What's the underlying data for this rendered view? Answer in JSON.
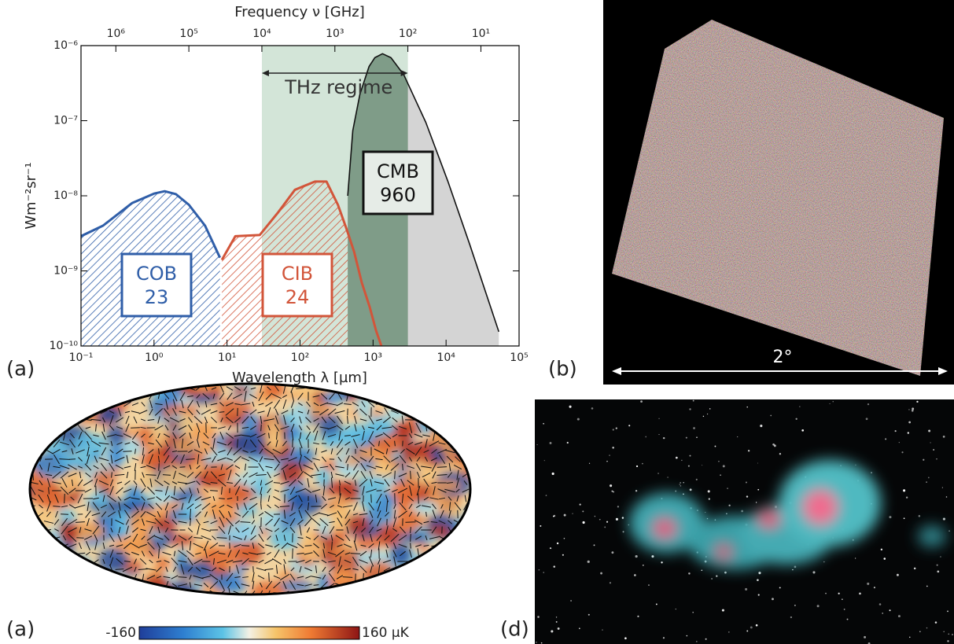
{
  "chart_data": [
    {
      "type": "line",
      "xscale": "log",
      "yscale": "log",
      "x_label": "Wavelength λ [µm]",
      "x2_label": "Frequency ν [GHz]",
      "y_label": "Wm⁻²sr⁻¹",
      "xlim": [
        0.1,
        100000
      ],
      "xticks": [
        {
          "value": 0.1,
          "label": "10⁻¹"
        },
        {
          "value": 1,
          "label": "10⁰"
        },
        {
          "value": 10,
          "label": "10¹"
        },
        {
          "value": 100,
          "label": "10²"
        },
        {
          "value": 1000,
          "label": "10³"
        },
        {
          "value": 10000,
          "label": "10⁴"
        },
        {
          "value": 100000,
          "label": "10⁵"
        }
      ],
      "x2lim": [
        3000000,
        3
      ],
      "x2ticks": [
        {
          "value": 1000000,
          "label": "10⁶"
        },
        {
          "value": 100000,
          "label": "10⁵"
        },
        {
          "value": 10000,
          "label": "10⁴"
        },
        {
          "value": 1000,
          "label": "10³"
        },
        {
          "value": 100,
          "label": "10²"
        },
        {
          "value": 10,
          "label": "10¹"
        }
      ],
      "ylim": [
        1e-10,
        1e-06
      ],
      "yticks": [
        {
          "value": 1e-10,
          "label": "10⁻¹⁰"
        },
        {
          "value": 1e-09,
          "label": "10⁻⁹"
        },
        {
          "value": 1e-08,
          "label": "10⁻⁸"
        },
        {
          "value": 1e-07,
          "label": "10⁻⁷"
        },
        {
          "value": 1e-06,
          "label": "10⁻⁶"
        }
      ],
      "band": {
        "xlim": [
          30,
          3000
        ],
        "label": "THz regime"
      },
      "series": [
        {
          "name": "COB",
          "total": 23,
          "color": "#2f5ea8",
          "x": [
            0.1,
            0.2,
            0.5,
            1,
            1.4,
            2,
            3,
            5,
            8
          ],
          "values": [
            2.9e-09,
            4e-09,
            8e-09,
            1.07e-08,
            1.15e-08,
            1.05e-08,
            7.6e-09,
            4e-09,
            1.5e-09
          ]
        },
        {
          "name": "CIB",
          "total": 24,
          "color": "#d2553a",
          "x": [
            8.5,
            13,
            28,
            50,
            85,
            160,
            230,
            330,
            430,
            550,
            700,
            900,
            1100,
            1300
          ],
          "values": [
            1.4e-09,
            2.9e-09,
            3e-09,
            6e-09,
            1.2e-08,
            1.55e-08,
            1.55e-08,
            7.6e-09,
            3.7e-09,
            1.8e-09,
            7e-10,
            3.3e-10,
            1.6e-10,
            1e-10
          ]
        },
        {
          "name": "CMB",
          "total": 960,
          "color": "#111111",
          "x": [
            450,
            528,
            660,
            880,
            1056,
            1347,
            1760,
            2640,
            5280,
            10560,
            21120,
            52800
          ],
          "values": [
            1e-08,
            7.4e-08,
            2.24e-07,
            5.25e-07,
            6.9e-07,
            7.8e-07,
            6.9e-07,
            4.08e-07,
            9.5e-08,
            1.57e-08,
            2.24e-09,
            1.55e-10
          ]
        }
      ]
    },
    {
      "type": "colorbar",
      "xlim": [
        -160,
        160
      ],
      "xticks": [
        -160,
        {
          "value": 160,
          "label": "160 μK"
        }
      ]
    }
  ],
  "panel_labels": [
    "(a)",
    "(b)",
    "(a)",
    "(d)"
  ],
  "scale_bar_label": "2°"
}
